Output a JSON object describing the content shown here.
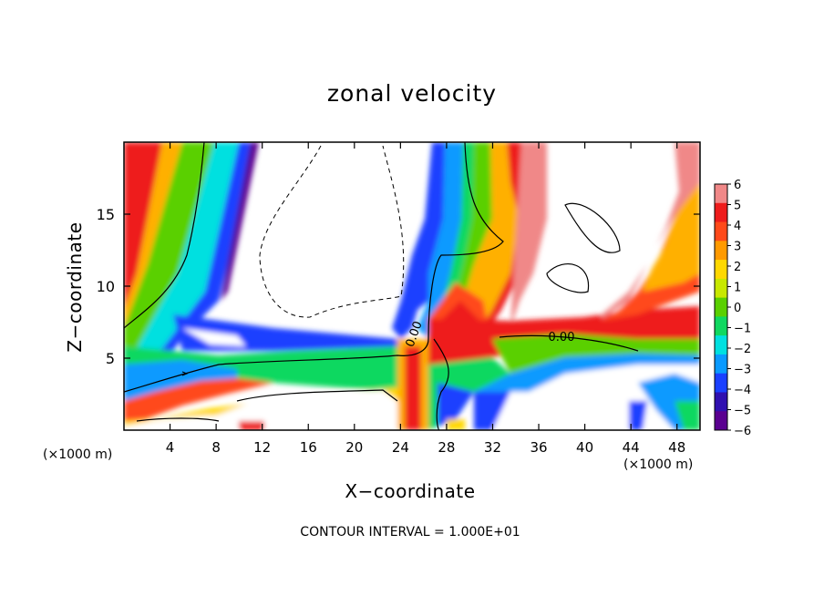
{
  "chart_data": {
    "type": "heatmap",
    "title": "zonal velocity",
    "xlabel": "X−coordinate",
    "ylabel": "Z−coordinate",
    "x_unit_left": "(×1000 m)",
    "x_unit_right": "(×1000 m)",
    "xlim": [
      0,
      50
    ],
    "ylim": [
      0,
      20
    ],
    "xticks": [
      4,
      8,
      12,
      16,
      20,
      24,
      28,
      32,
      36,
      40,
      44,
      48
    ],
    "xtick_labels": [
      "4",
      "8",
      "12",
      "16",
      "20",
      "24",
      "28",
      "32",
      "36",
      "40",
      "44",
      "48"
    ],
    "yticks": [
      5,
      10,
      15
    ],
    "ytick_labels": [
      "5",
      "10",
      "15"
    ],
    "colorbar": {
      "min": -6,
      "max": 6,
      "levels": [
        6,
        5,
        4,
        3,
        2,
        1,
        0,
        -1,
        -2,
        -3,
        -4,
        -5,
        -6
      ],
      "labels": [
        "6",
        "5",
        "4",
        "3",
        "2",
        "1",
        "0",
        "−1",
        "−2",
        "−3",
        "−4",
        "−5",
        "−6"
      ],
      "colors": [
        "#f08888",
        "#ee1c1c",
        "#ff4a1a",
        "#ff9a00",
        "#ffd800",
        "#c8e800",
        "#5ad000",
        "#10d860",
        "#00e0e0",
        "#0a9aff",
        "#1a40ff",
        "#3010b0",
        "#5a0090"
      ]
    },
    "contour_labels": [
      "0.00",
      "0.00"
    ],
    "footer": "CONTOUR INTERVAL = 1.000E+01",
    "grid": false
  }
}
